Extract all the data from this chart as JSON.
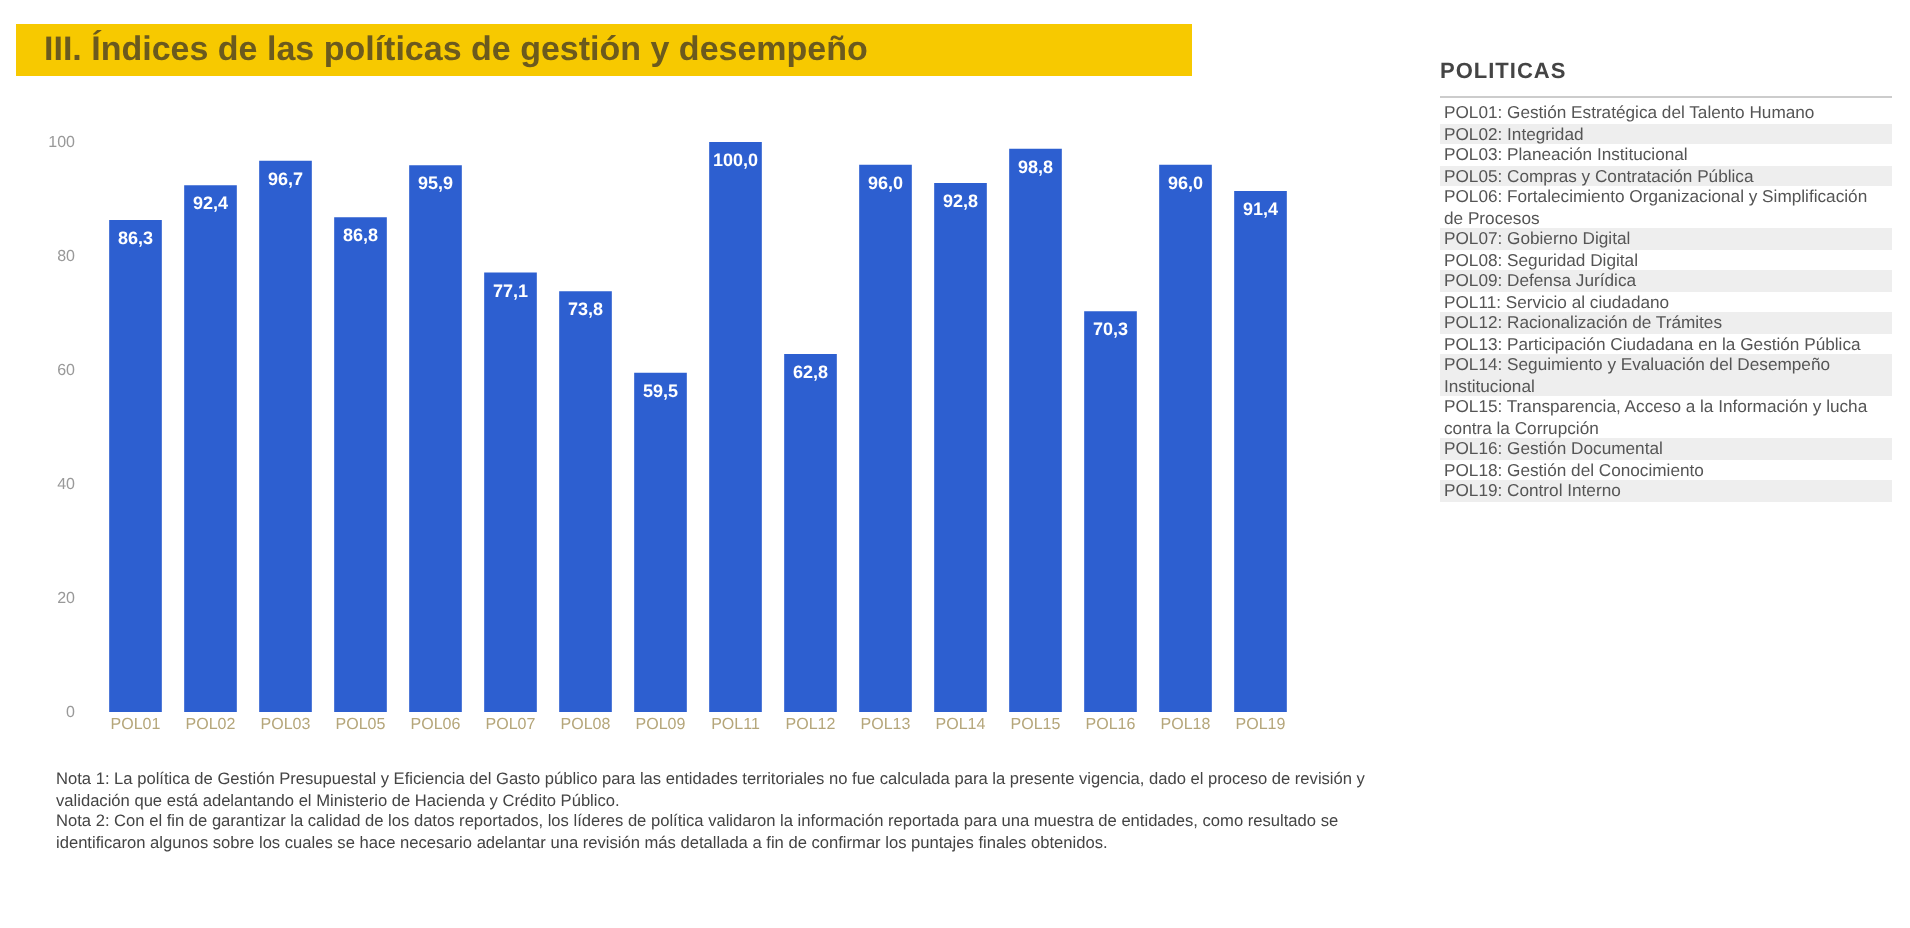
{
  "chart_data": {
    "type": "bar",
    "title": "III. Índices de las políticas de gestión y desempeño",
    "categories": [
      "POL01",
      "POL02",
      "POL03",
      "POL05",
      "POL06",
      "POL07",
      "POL08",
      "POL09",
      "POL11",
      "POL12",
      "POL13",
      "POL14",
      "POL15",
      "POL16",
      "POL18",
      "POL19"
    ],
    "values": [
      86.3,
      92.4,
      96.7,
      86.8,
      95.9,
      77.1,
      73.8,
      59.5,
      100.0,
      62.8,
      96.0,
      92.8,
      98.8,
      70.3,
      96.0,
      91.4
    ],
    "value_labels": [
      "86,3",
      "92,4",
      "96,7",
      "86,8",
      "95,9",
      "77,1",
      "73,8",
      "59,5",
      "100,0",
      "62,8",
      "96,0",
      "92,8",
      "98,8",
      "70,3",
      "96,0",
      "91,4"
    ],
    "color": "#2d5fd0",
    "ylim": [
      0,
      100
    ],
    "yticks": [
      0,
      20,
      40,
      60,
      80,
      100
    ],
    "grid": false,
    "legend_title": "POLITICAS",
    "annotations": [
      "POL01: Gestión Estratégica del Talento Humano",
      "POL02: Integridad",
      "POL03: Planeación Institucional",
      "POL05: Compras y Contratación Pública",
      "POL06: Fortalecimiento Organizacional y Simplificación de Procesos",
      "POL07: Gobierno Digital",
      "POL08: Seguridad Digital",
      "POL09: Defensa Jurídica",
      "POL11: Servicio al ciudadano",
      "POL12: Racionalización de Trámites",
      "POL13: Participación Ciudadana en la Gestión Pública",
      "POL14: Seguimiento y Evaluación del Desempeño Institucional",
      "POL15: Transparencia, Acceso a la Información y lucha contra la Corrupción",
      "POL16: Gestión Documental",
      "POL18: Gestión del Conocimiento",
      "POL19: Control Interno",
      "Nota 1: La política de Gestión Presupuestal y Eficiencia del Gasto público para las entidades territoriales no fue calculada para la presente vigencia, dado el proceso de revisión y validación que está adelantando el Ministerio de Hacienda y Crédito Público.",
      "Nota 2: Con el fin de garantizar la calidad de los datos reportados, los líderes de política validaron la información reportada para una muestra de entidades, como resultado se identificaron algunos sobre los cuales se hace necesario adelantar una revisión más detallada a fin de confirmar los puntajes finales obtenidos."
    ]
  }
}
